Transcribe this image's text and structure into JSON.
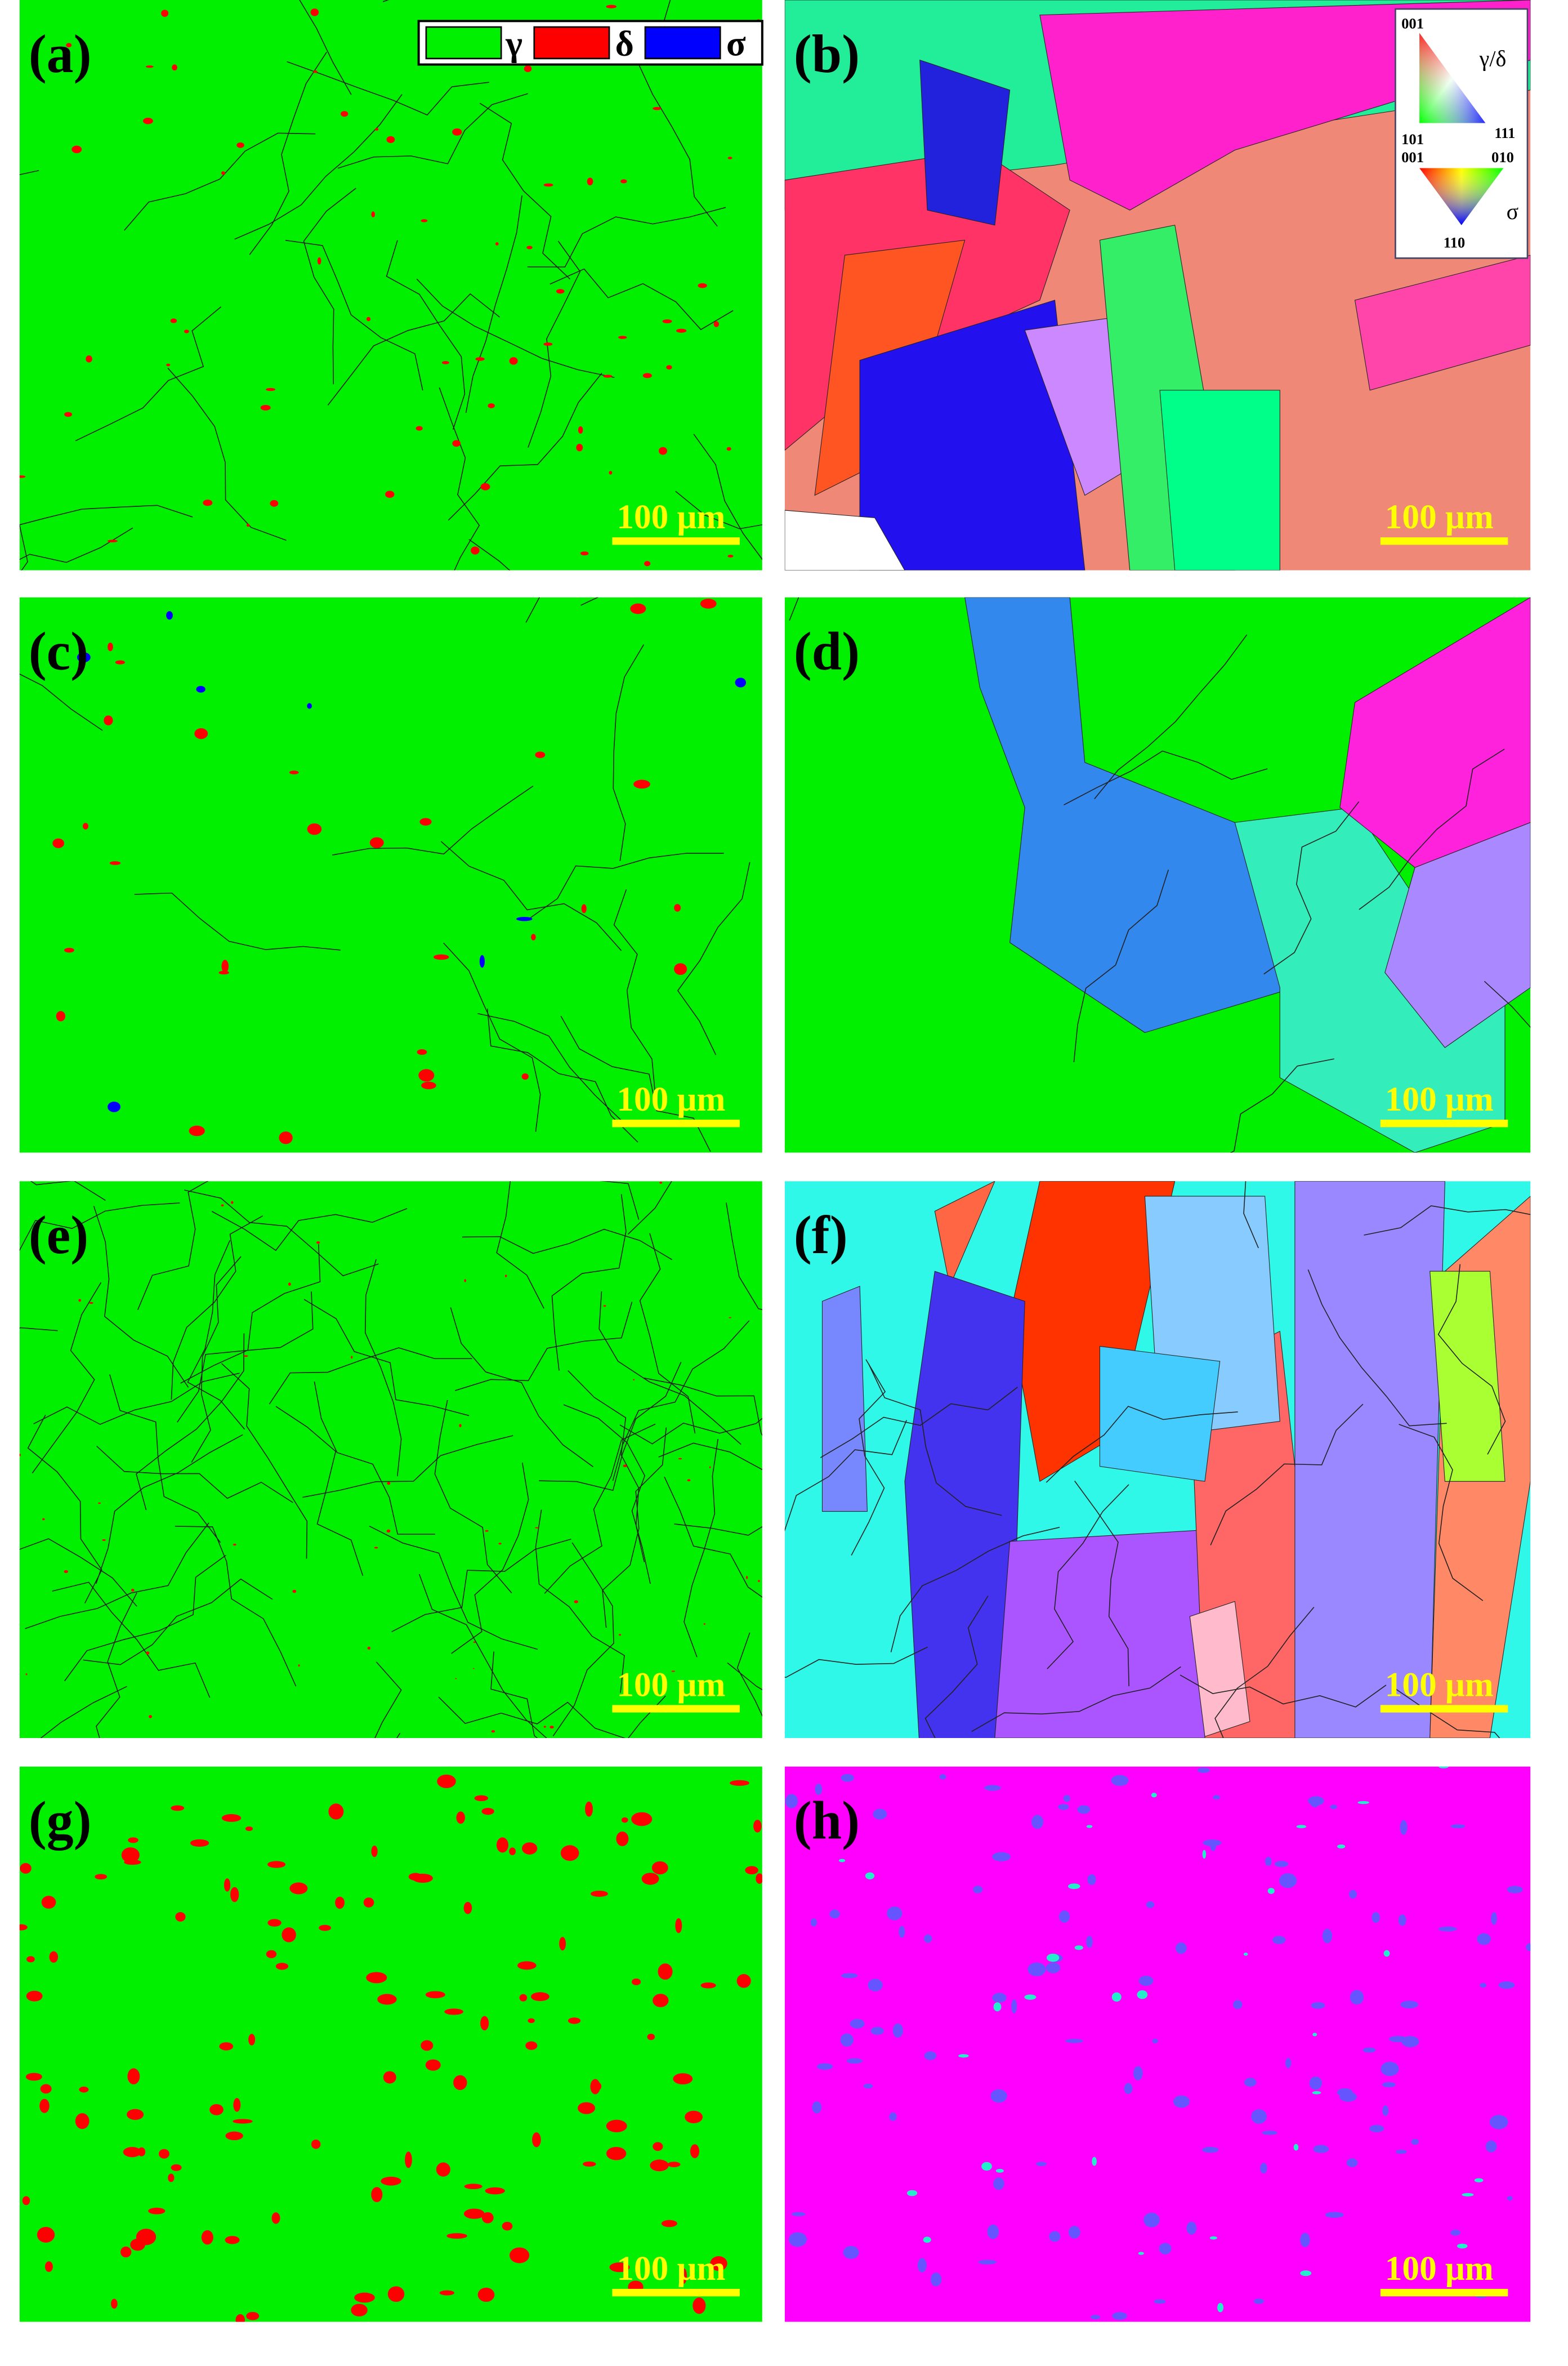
{
  "panels": [
    {
      "label": "(a)",
      "scale_bar": "100 μm"
    },
    {
      "label": "(b)",
      "scale_bar": "100 μm"
    },
    {
      "label": "(c)",
      "scale_bar": "100 μm"
    },
    {
      "label": "(d)",
      "scale_bar": "100 μm"
    },
    {
      "label": "(e)",
      "scale_bar": "100 μm"
    },
    {
      "label": "(f)",
      "scale_bar": "100 μm"
    },
    {
      "label": "(g)",
      "scale_bar": "100 μm"
    },
    {
      "label": "(h)",
      "scale_bar": "100 μm"
    }
  ],
  "legend": {
    "items": [
      "γ",
      "δ",
      "σ"
    ]
  },
  "ipf_key": {
    "gamma_delta": {
      "corners": [
        "001",
        "101",
        "111"
      ],
      "label": "γ/δ"
    },
    "sigma": {
      "corners": [
        "001",
        "010",
        "110"
      ],
      "label": "σ"
    }
  }
}
